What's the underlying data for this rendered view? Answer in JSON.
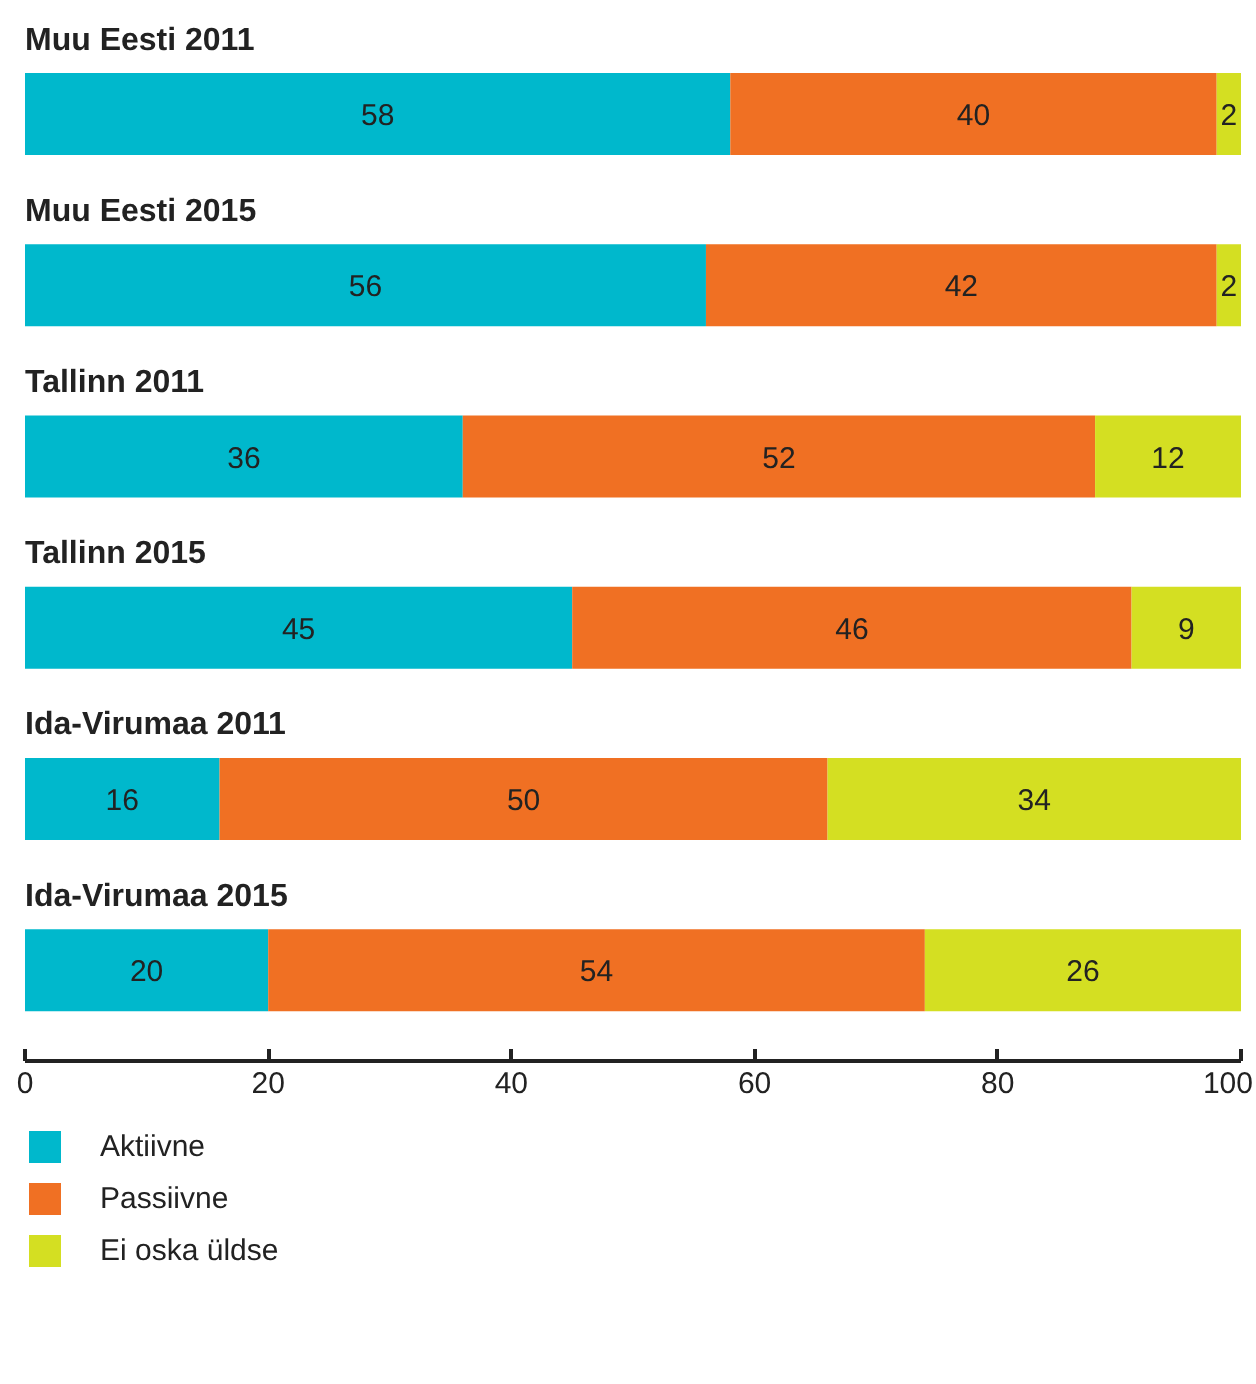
{
  "chart_data": {
    "type": "bar",
    "orientation": "horizontal",
    "stacked": true,
    "data_labels": true,
    "legend": "bottom",
    "xlim": [
      0,
      100
    ],
    "xticks": [
      0,
      20,
      40,
      60,
      80,
      100
    ],
    "categories": [
      "Muu Eesti 2011",
      "Muu Eesti 2015",
      "Tallinn 2011",
      "Tallinn 2015",
      "Ida-Virumaa 2011",
      "Ida-Virumaa 2015"
    ],
    "series": [
      {
        "name": "Aktiivne",
        "color": "#00b8cc",
        "values": [
          58,
          56,
          36,
          45,
          16,
          20
        ]
      },
      {
        "name": "Passiivne",
        "color": "#f07023",
        "values": [
          40,
          42,
          52,
          46,
          50,
          54
        ]
      },
      {
        "name": "Ei oska üldse",
        "color": "#d4df22",
        "values": [
          2,
          2,
          12,
          9,
          34,
          26
        ]
      }
    ]
  }
}
